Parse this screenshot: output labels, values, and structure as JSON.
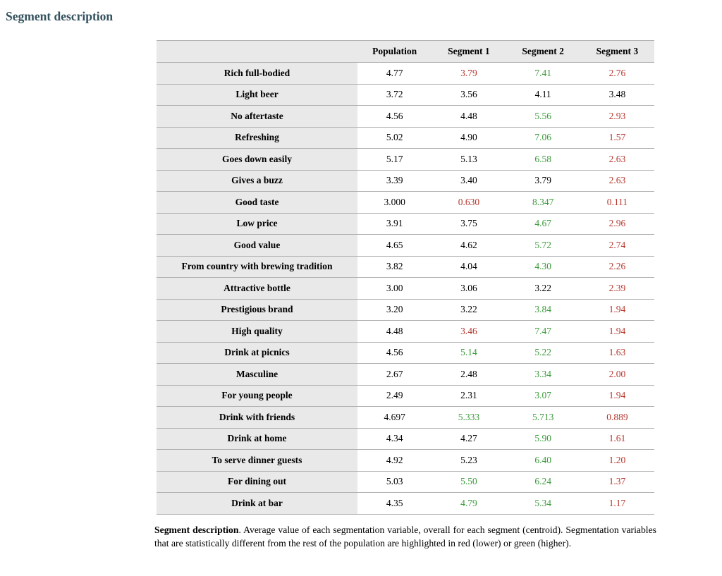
{
  "page_title": "Segment description",
  "colors": {
    "title_heading": "#33525e",
    "significant_lower_red": "#b5372e",
    "significant_higher_green": "#3c9b3c",
    "header_and_label_background": "#e9e9e9",
    "row_border": "#b0b0b0",
    "default_text": "#000000"
  },
  "table": {
    "columns": [
      "",
      "Population",
      "Segment 1",
      "Segment 2",
      "Segment 3"
    ],
    "rows": [
      {
        "label": "Rich full-bodied",
        "values": [
          {
            "value": "4.77",
            "color": "black"
          },
          {
            "value": "3.79",
            "color": "red"
          },
          {
            "value": "7.41",
            "color": "green"
          },
          {
            "value": "2.76",
            "color": "red"
          }
        ]
      },
      {
        "label": "Light beer",
        "values": [
          {
            "value": "3.72",
            "color": "black"
          },
          {
            "value": "3.56",
            "color": "black"
          },
          {
            "value": "4.11",
            "color": "black"
          },
          {
            "value": "3.48",
            "color": "black"
          }
        ]
      },
      {
        "label": "No aftertaste",
        "values": [
          {
            "value": "4.56",
            "color": "black"
          },
          {
            "value": "4.48",
            "color": "black"
          },
          {
            "value": "5.56",
            "color": "green"
          },
          {
            "value": "2.93",
            "color": "red"
          }
        ]
      },
      {
        "label": "Refreshing",
        "values": [
          {
            "value": "5.02",
            "color": "black"
          },
          {
            "value": "4.90",
            "color": "black"
          },
          {
            "value": "7.06",
            "color": "green"
          },
          {
            "value": "1.57",
            "color": "red"
          }
        ]
      },
      {
        "label": "Goes down easily",
        "values": [
          {
            "value": "5.17",
            "color": "black"
          },
          {
            "value": "5.13",
            "color": "black"
          },
          {
            "value": "6.58",
            "color": "green"
          },
          {
            "value": "2.63",
            "color": "red"
          }
        ]
      },
      {
        "label": "Gives a buzz",
        "values": [
          {
            "value": "3.39",
            "color": "black"
          },
          {
            "value": "3.40",
            "color": "black"
          },
          {
            "value": "3.79",
            "color": "black"
          },
          {
            "value": "2.63",
            "color": "red"
          }
        ]
      },
      {
        "label": "Good taste",
        "values": [
          {
            "value": "3.000",
            "color": "black"
          },
          {
            "value": "0.630",
            "color": "red"
          },
          {
            "value": "8.347",
            "color": "green"
          },
          {
            "value": "0.111",
            "color": "red"
          }
        ]
      },
      {
        "label": "Low price",
        "values": [
          {
            "value": "3.91",
            "color": "black"
          },
          {
            "value": "3.75",
            "color": "black"
          },
          {
            "value": "4.67",
            "color": "green"
          },
          {
            "value": "2.96",
            "color": "red"
          }
        ]
      },
      {
        "label": "Good value",
        "values": [
          {
            "value": "4.65",
            "color": "black"
          },
          {
            "value": "4.62",
            "color": "black"
          },
          {
            "value": "5.72",
            "color": "green"
          },
          {
            "value": "2.74",
            "color": "red"
          }
        ]
      },
      {
        "label": "From country with brewing tradition",
        "values": [
          {
            "value": "3.82",
            "color": "black"
          },
          {
            "value": "4.04",
            "color": "black"
          },
          {
            "value": "4.30",
            "color": "green"
          },
          {
            "value": "2.26",
            "color": "red"
          }
        ]
      },
      {
        "label": "Attractive bottle",
        "values": [
          {
            "value": "3.00",
            "color": "black"
          },
          {
            "value": "3.06",
            "color": "black"
          },
          {
            "value": "3.22",
            "color": "black"
          },
          {
            "value": "2.39",
            "color": "red"
          }
        ]
      },
      {
        "label": "Prestigious brand",
        "values": [
          {
            "value": "3.20",
            "color": "black"
          },
          {
            "value": "3.22",
            "color": "black"
          },
          {
            "value": "3.84",
            "color": "green"
          },
          {
            "value": "1.94",
            "color": "red"
          }
        ]
      },
      {
        "label": "High quality",
        "values": [
          {
            "value": "4.48",
            "color": "black"
          },
          {
            "value": "3.46",
            "color": "red"
          },
          {
            "value": "7.47",
            "color": "green"
          },
          {
            "value": "1.94",
            "color": "red"
          }
        ]
      },
      {
        "label": "Drink at picnics",
        "values": [
          {
            "value": "4.56",
            "color": "black"
          },
          {
            "value": "5.14",
            "color": "green"
          },
          {
            "value": "5.22",
            "color": "green"
          },
          {
            "value": "1.63",
            "color": "red"
          }
        ]
      },
      {
        "label": "Masculine",
        "values": [
          {
            "value": "2.67",
            "color": "black"
          },
          {
            "value": "2.48",
            "color": "black"
          },
          {
            "value": "3.34",
            "color": "green"
          },
          {
            "value": "2.00",
            "color": "red"
          }
        ]
      },
      {
        "label": "For young people",
        "values": [
          {
            "value": "2.49",
            "color": "black"
          },
          {
            "value": "2.31",
            "color": "black"
          },
          {
            "value": "3.07",
            "color": "green"
          },
          {
            "value": "1.94",
            "color": "red"
          }
        ]
      },
      {
        "label": "Drink with friends",
        "values": [
          {
            "value": "4.697",
            "color": "black"
          },
          {
            "value": "5.333",
            "color": "green"
          },
          {
            "value": "5.713",
            "color": "green"
          },
          {
            "value": "0.889",
            "color": "red"
          }
        ]
      },
      {
        "label": "Drink at home",
        "values": [
          {
            "value": "4.34",
            "color": "black"
          },
          {
            "value": "4.27",
            "color": "black"
          },
          {
            "value": "5.90",
            "color": "green"
          },
          {
            "value": "1.61",
            "color": "red"
          }
        ]
      },
      {
        "label": "To serve dinner guests",
        "values": [
          {
            "value": "4.92",
            "color": "black"
          },
          {
            "value": "5.23",
            "color": "black"
          },
          {
            "value": "6.40",
            "color": "green"
          },
          {
            "value": "1.20",
            "color": "red"
          }
        ]
      },
      {
        "label": "For dining out",
        "values": [
          {
            "value": "5.03",
            "color": "black"
          },
          {
            "value": "5.50",
            "color": "green"
          },
          {
            "value": "6.24",
            "color": "green"
          },
          {
            "value": "1.37",
            "color": "red"
          }
        ]
      },
      {
        "label": "Drink at bar",
        "values": [
          {
            "value": "4.35",
            "color": "black"
          },
          {
            "value": "4.79",
            "color": "green"
          },
          {
            "value": "5.34",
            "color": "green"
          },
          {
            "value": "1.17",
            "color": "red"
          }
        ]
      }
    ]
  },
  "caption": {
    "lead": "Segment description",
    "body": ". Average value of each segmentation variable, overall for each segment (centroid). Segmentation variables that are statistically different from the rest of the population are highlighted in red (lower) or green (higher)."
  }
}
